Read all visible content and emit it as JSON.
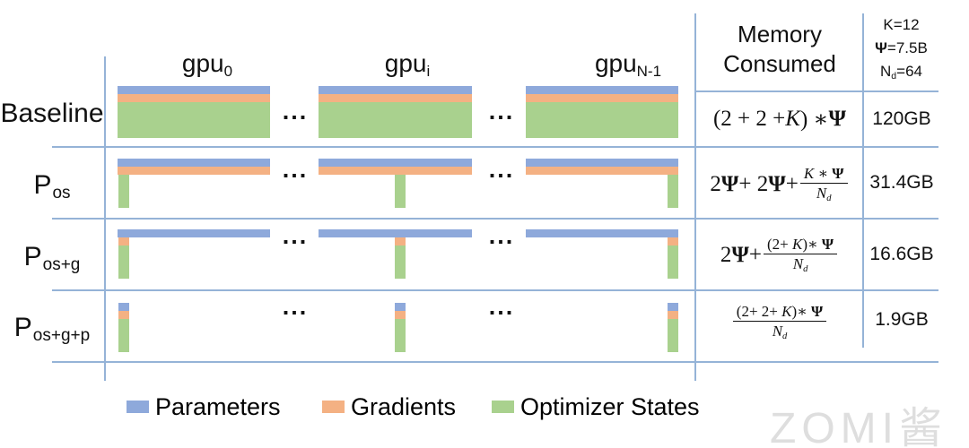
{
  "colors": {
    "parameters": "#8EA9DB",
    "gradients": "#F4B183",
    "optimizer_states": "#A9D18E",
    "grid_line": "#95B3D7",
    "text": "#111111",
    "watermark": "#DEDEDE"
  },
  "gpu_columns": [
    {
      "base": "gpu",
      "sub": "0"
    },
    {
      "base": "gpu",
      "sub": "i"
    },
    {
      "base": "gpu",
      "sub": "N-1"
    }
  ],
  "ellipsis": "...",
  "memory_header": {
    "line1": "Memory",
    "line2": "Consumed"
  },
  "constants": [
    [
      {
        "t": "K=12"
      }
    ],
    [
      {
        "b": "Ψ"
      },
      {
        "t": "=7.5B"
      }
    ],
    [
      {
        "t": "N"
      },
      {
        "s": "d"
      },
      {
        "t": "=64"
      }
    ]
  ],
  "rows": [
    {
      "label": {
        "main": "Baseline",
        "sub": ""
      },
      "partitioning": {
        "parameters": false,
        "gradients": false,
        "optimizer_states": false
      },
      "formula": [
        {
          "t": "(2 + 2 + "
        },
        {
          "i": "K"
        },
        {
          "t": ") ∗ "
        },
        {
          "b": "Ψ"
        }
      ],
      "value": "120GB"
    },
    {
      "label": {
        "main": "P",
        "sub": "os"
      },
      "partitioning": {
        "parameters": false,
        "gradients": false,
        "optimizer_states": true
      },
      "formula": [
        {
          "t": "2"
        },
        {
          "b": "Ψ"
        },
        {
          "t": " + 2"
        },
        {
          "b": "Ψ"
        },
        {
          "t": " + "
        },
        {
          "f": {
            "n": [
              {
                "i": "K"
              },
              {
                "t": " ∗ "
              },
              {
                "b": "Ψ"
              }
            ],
            "d": [
              {
                "i": "N"
              },
              {
                "s": "d"
              }
            ]
          }
        }
      ],
      "value": "31.4GB"
    },
    {
      "label": {
        "main": "P",
        "sub": "os+g"
      },
      "partitioning": {
        "parameters": false,
        "gradients": true,
        "optimizer_states": true
      },
      "formula": [
        {
          "t": "2"
        },
        {
          "b": "Ψ"
        },
        {
          "t": " + "
        },
        {
          "f": {
            "n": [
              {
                "t": "(2+ "
              },
              {
                "i": "K"
              },
              {
                "t": ")∗ "
              },
              {
                "b": "Ψ"
              }
            ],
            "d": [
              {
                "i": "N"
              },
              {
                "s": "d"
              }
            ]
          }
        }
      ],
      "value": "16.6GB"
    },
    {
      "label": {
        "main": "P",
        "sub": "os+g+p"
      },
      "partitioning": {
        "parameters": true,
        "gradients": true,
        "optimizer_states": true
      },
      "formula": [
        {
          "f": {
            "n": [
              {
                "t": "(2+ 2+ "
              },
              {
                "i": "K"
              },
              {
                "t": ")∗ "
              },
              {
                "b": "Ψ"
              }
            ],
            "d": [
              {
                "i": "N"
              },
              {
                "s": "d"
              }
            ]
          }
        }
      ],
      "value": "1.9GB"
    }
  ],
  "legend": {
    "items": [
      {
        "label": "Parameters",
        "color_key": "parameters"
      },
      {
        "label": "Gradients",
        "color_key": "gradients"
      },
      {
        "label": "Optimizer States",
        "color_key": "optimizer_states"
      }
    ]
  },
  "watermark": {
    "latin": "ZOMI",
    "cjk": "酱"
  }
}
